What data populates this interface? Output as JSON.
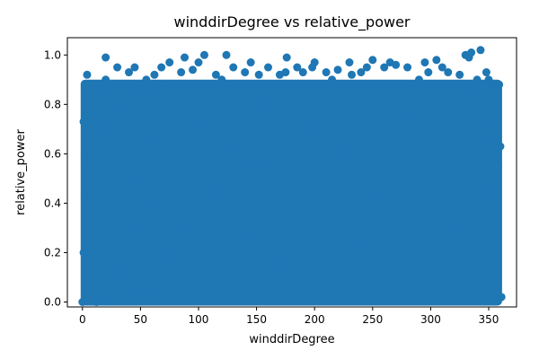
{
  "chart_data": {
    "type": "scatter",
    "title": "winddirDegree vs relative_power",
    "xlabel": "winddirDegree",
    "ylabel": "relative_power",
    "xlim": [
      -13,
      374
    ],
    "ylim": [
      -0.02,
      1.07
    ],
    "x_ticks": [
      0,
      50,
      100,
      150,
      200,
      250,
      300,
      350
    ],
    "x_tick_labels": [
      "0",
      "50",
      "100",
      "150",
      "200",
      "250",
      "300",
      "350"
    ],
    "y_ticks": [
      0.0,
      0.2,
      0.4,
      0.6,
      0.8,
      1.0
    ],
    "y_tick_labels": [
      "0.0",
      "0.2",
      "0.4",
      "0.6",
      "0.8",
      "1.0"
    ],
    "grid": false,
    "legend": "none",
    "marker_color": "#1f77b4",
    "series": [
      {
        "x": [
          0,
          1,
          1,
          2,
          2,
          3,
          4,
          5,
          5,
          6,
          7,
          8,
          9,
          10,
          12,
          15,
          18,
          20,
          20,
          25,
          30,
          32,
          35,
          40,
          42,
          45,
          48,
          50,
          52,
          55,
          60,
          62,
          65,
          68,
          70,
          72,
          75,
          80,
          85,
          88,
          90,
          95,
          100,
          102,
          105,
          110,
          115,
          120,
          124,
          125,
          130,
          135,
          140,
          145,
          150,
          152,
          155,
          160,
          165,
          170,
          175,
          176,
          180,
          185,
          190,
          195,
          198,
          200,
          205,
          210,
          215,
          220,
          225,
          230,
          232,
          235,
          240,
          245,
          250,
          255,
          260,
          265,
          270,
          275,
          280,
          285,
          290,
          295,
          298,
          300,
          305,
          310,
          315,
          320,
          325,
          330,
          333,
          335,
          338,
          340,
          343,
          345,
          348,
          350,
          352,
          355,
          357,
          358,
          359,
          360,
          361
        ],
        "y": [
          0.0,
          0.73,
          0.2,
          0.6,
          0.44,
          0.02,
          0.92,
          0.8,
          0.1,
          0.68,
          0.55,
          0.33,
          0.86,
          0.62,
          0.0,
          0.47,
          0.7,
          0.99,
          0.9,
          0.25,
          0.95,
          0.12,
          0.78,
          0.93,
          0.3,
          0.95,
          0.5,
          0.85,
          0.05,
          0.9,
          0.65,
          0.92,
          0.4,
          0.95,
          0.18,
          0.88,
          0.97,
          0.58,
          0.93,
          0.99,
          0.3,
          0.94,
          0.97,
          0.72,
          1.0,
          0.45,
          0.92,
          0.9,
          1.0,
          0.62,
          0.95,
          0.28,
          0.93,
          0.97,
          0.55,
          0.92,
          0.8,
          0.95,
          0.15,
          0.92,
          0.93,
          0.99,
          0.48,
          0.95,
          0.93,
          0.7,
          0.95,
          0.97,
          0.35,
          0.93,
          0.9,
          0.94,
          0.6,
          0.97,
          0.92,
          0.22,
          0.93,
          0.95,
          0.98,
          0.42,
          0.95,
          0.97,
          0.96,
          0.75,
          0.95,
          0.88,
          0.9,
          0.97,
          0.93,
          0.5,
          0.98,
          0.95,
          0.93,
          0.3,
          0.92,
          1.0,
          0.99,
          1.01,
          0.86,
          0.9,
          1.02,
          0.65,
          0.93,
          0.9,
          0.45,
          0.88,
          0.73,
          0.55,
          0.88,
          0.63,
          0.02
        ]
      }
    ]
  }
}
